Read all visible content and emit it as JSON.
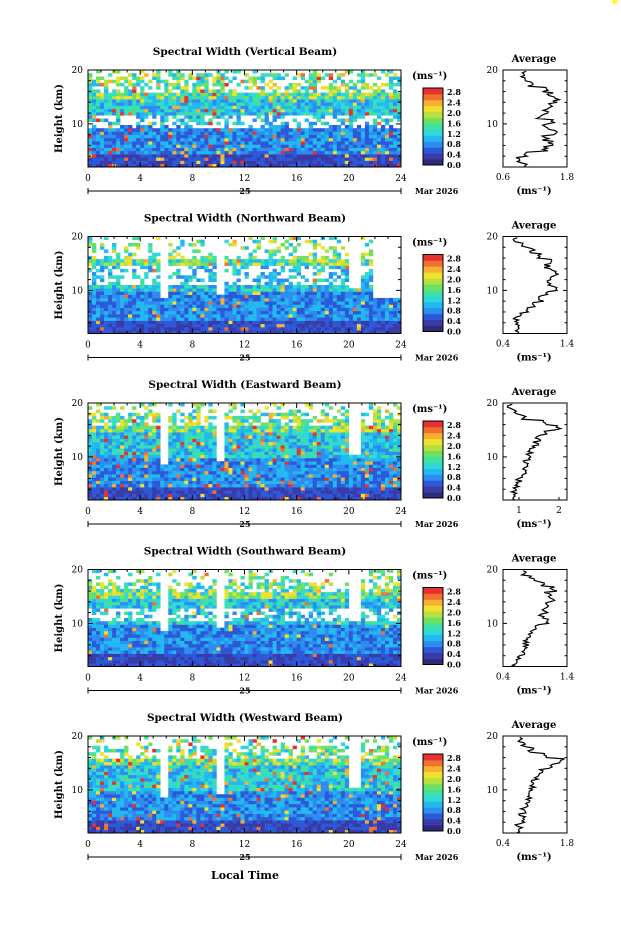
{
  "figure": {
    "x_axis_title": "Local Time",
    "date_left": "25",
    "date_right": "Mar 2026",
    "accent_color": "#ffff00"
  },
  "colorbar": {
    "unit": "(ms⁻¹)",
    "ticks": [
      "0.0",
      "0.4",
      "0.8",
      "1.2",
      "1.6",
      "2.0",
      "2.4",
      "2.8"
    ],
    "colors": [
      "#2b2b7a",
      "#3a3aa8",
      "#2c59d8",
      "#2c8cf0",
      "#22b8f0",
      "#30d8d8",
      "#40e0a0",
      "#70e060",
      "#b8e040",
      "#f0e030",
      "#f8b030",
      "#f07030",
      "#e83030"
    ]
  },
  "chart_data": [
    {
      "type": "heatmap",
      "title": "Spectral Width (Vertical Beam)",
      "ylabel": "Height (km)",
      "x_ticks": [
        0,
        4,
        8,
        12,
        16,
        20,
        24
      ],
      "y_ticks": [
        10,
        20
      ],
      "xlim": [
        0,
        24
      ],
      "ylim": [
        2,
        20
      ],
      "grid": false,
      "profile": {
        "title": "Average",
        "xlabel": "(ms⁻¹)",
        "xlim": [
          0.6,
          1.8
        ],
        "x_ticks": [
          "0.6",
          "1.8"
        ],
        "y_ticks": [
          10,
          20
        ],
        "heights": [
          2.5,
          3.5,
          4.5,
          5.5,
          6.5,
          7.5,
          8.5,
          9.5,
          10.5,
          11.5,
          12.5,
          13.5,
          14.5,
          15.5,
          16.5,
          17.5,
          18.5,
          19.5
        ],
        "values": [
          1.0,
          0.9,
          1.0,
          1.4,
          1.5,
          1.4,
          1.6,
          1.4,
          1.5,
          1.3,
          1.4,
          1.5,
          1.6,
          1.5,
          1.4,
          1.1,
          1.0,
          1.0
        ]
      }
    },
    {
      "type": "heatmap",
      "title": "Spectral Width (Northward Beam)",
      "ylabel": "Height (km)",
      "x_ticks": [
        0,
        4,
        8,
        12,
        16,
        20,
        24
      ],
      "y_ticks": [
        10,
        20
      ],
      "xlim": [
        0,
        24
      ],
      "ylim": [
        2,
        20
      ],
      "grid": false,
      "profile": {
        "title": "Average",
        "xlabel": "(ms⁻¹)",
        "xlim": [
          0.4,
          1.4
        ],
        "x_ticks": [
          "0.4",
          "1.4"
        ],
        "y_ticks": [
          10,
          20
        ],
        "heights": [
          2.5,
          3.5,
          4.5,
          5.5,
          6.5,
          7.5,
          8.5,
          9.5,
          10.5,
          11.5,
          12.5,
          13.5,
          14.5,
          15.5,
          16.5,
          17.5,
          18.5,
          19.5
        ],
        "values": [
          0.65,
          0.6,
          0.62,
          0.65,
          0.8,
          0.9,
          1.0,
          1.05,
          1.2,
          1.1,
          1.15,
          1.2,
          1.1,
          1.15,
          1.0,
          0.85,
          0.75,
          0.6
        ]
      }
    },
    {
      "type": "heatmap",
      "title": "Spectral Width (Eastward Beam)",
      "ylabel": "Height (km)",
      "x_ticks": [
        0,
        4,
        8,
        12,
        16,
        20,
        24
      ],
      "y_ticks": [
        10,
        20
      ],
      "xlim": [
        0,
        24
      ],
      "ylim": [
        2,
        20
      ],
      "grid": false,
      "profile": {
        "title": "Average",
        "xlabel": "(ms⁻¹)",
        "xlim": [
          0.6,
          2.2
        ],
        "x_ticks": [
          "1",
          "2"
        ],
        "y_ticks": [
          10,
          20
        ],
        "heights": [
          2.5,
          3.5,
          4.5,
          5.5,
          6.5,
          7.5,
          8.5,
          9.5,
          10.5,
          11.5,
          12.5,
          13.5,
          14.5,
          15.5,
          16.5,
          17.5,
          18.5,
          19.5
        ],
        "values": [
          0.9,
          0.85,
          0.95,
          1.0,
          1.05,
          1.1,
          1.15,
          1.2,
          1.25,
          1.3,
          1.4,
          1.5,
          1.6,
          2.0,
          1.6,
          1.1,
          0.9,
          0.8
        ]
      }
    },
    {
      "type": "heatmap",
      "title": "Spectral Width (Southward Beam)",
      "ylabel": "Height (km)",
      "x_ticks": [
        0,
        4,
        8,
        12,
        16,
        20,
        24
      ],
      "y_ticks": [
        10,
        20
      ],
      "xlim": [
        0,
        24
      ],
      "ylim": [
        2,
        20
      ],
      "grid": false,
      "profile": {
        "title": "Average",
        "xlabel": "(ms⁻¹)",
        "xlim": [
          0.4,
          1.4
        ],
        "x_ticks": [
          "0.4",
          "1.4"
        ],
        "y_ticks": [
          10,
          20
        ],
        "heights": [
          2.5,
          3.5,
          4.5,
          5.5,
          6.5,
          7.5,
          8.5,
          9.5,
          10.5,
          11.5,
          12.5,
          13.5,
          14.5,
          15.5,
          16.5,
          17.5,
          18.5,
          19.5
        ],
        "values": [
          0.6,
          0.65,
          0.7,
          0.72,
          0.75,
          0.8,
          0.85,
          0.95,
          1.1,
          1.0,
          1.05,
          1.1,
          1.15,
          1.1,
          1.2,
          1.0,
          0.85,
          0.7
        ]
      }
    },
    {
      "type": "heatmap",
      "title": "Spectral Width (Westward Beam)",
      "ylabel": "Height (km)",
      "x_ticks": [
        0,
        4,
        8,
        12,
        16,
        20,
        24
      ],
      "y_ticks": [
        10,
        20
      ],
      "xlim": [
        0,
        24
      ],
      "ylim": [
        2,
        20
      ],
      "grid": false,
      "profile": {
        "title": "Average",
        "xlabel": "(ms⁻¹)",
        "xlim": [
          0.4,
          1.8
        ],
        "x_ticks": [
          "0.4",
          "1.8"
        ],
        "y_ticks": [
          10,
          20
        ],
        "heights": [
          2.5,
          3.5,
          4.5,
          5.5,
          6.5,
          7.5,
          8.5,
          9.5,
          10.5,
          11.5,
          12.5,
          13.5,
          14.5,
          15.5,
          16.5,
          17.5,
          18.5,
          19.5
        ],
        "values": [
          0.7,
          0.75,
          0.8,
          0.82,
          0.85,
          0.9,
          0.95,
          1.0,
          1.05,
          1.1,
          1.15,
          1.25,
          1.4,
          1.7,
          1.3,
          1.0,
          0.85,
          0.75
        ]
      }
    }
  ]
}
